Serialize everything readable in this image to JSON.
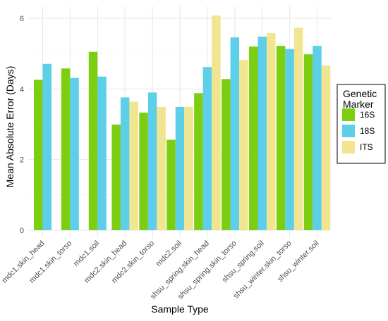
{
  "chart_data": {
    "type": "bar",
    "xlabel": "Sample Type",
    "ylabel": "Mean Absolute Error (Days)",
    "ylim": [
      0,
      6.3
    ],
    "yticks": [
      0,
      2,
      4,
      6
    ],
    "grid": true,
    "legend_position": "right",
    "legend_title": "Genetic Marker",
    "categories": [
      "mdc1.skin_head",
      "mdc1.skin_torso",
      "mdc1.soil",
      "mdc2.skin_head",
      "mdc2.skin_torso",
      "mdc2.soil",
      "shsu_spring.skin_head",
      "shsu_spring.skin_torso",
      "shsu_spring.soil",
      "shsu_winter.skin_torso",
      "shsu_winter.soil"
    ],
    "series": [
      {
        "name": "16S",
        "color": "#7cce12",
        "values": [
          4.26,
          4.58,
          5.05,
          2.99,
          3.33,
          2.56,
          3.88,
          4.28,
          5.2,
          5.22,
          4.98
        ]
      },
      {
        "name": "18S",
        "color": "#5dcfe8",
        "values": [
          4.71,
          4.31,
          4.35,
          3.76,
          3.9,
          3.49,
          4.62,
          5.46,
          5.48,
          5.13,
          5.22
        ]
      },
      {
        "name": "ITS",
        "color": "#f1e58f",
        "values": [
          null,
          null,
          null,
          3.64,
          3.49,
          3.49,
          6.08,
          4.82,
          5.58,
          5.73,
          4.66
        ]
      }
    ]
  }
}
